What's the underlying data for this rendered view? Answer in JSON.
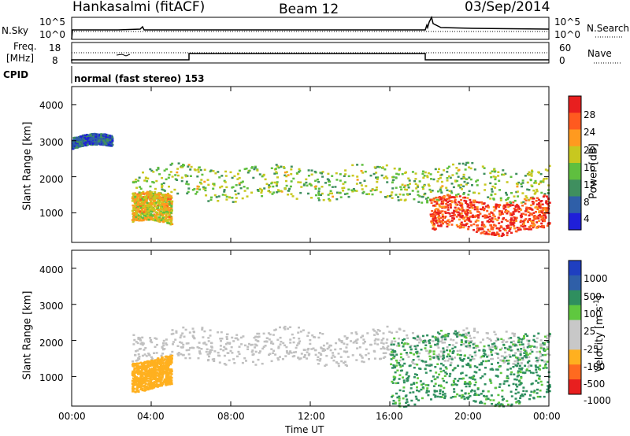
{
  "header": {
    "station": "Hankasalmi (fitACF)",
    "beam": "Beam 12",
    "date": "03/Sep/2014"
  },
  "strips": {
    "nsky_label": "N.Sky",
    "nsky_ticks": [
      "10^5",
      "10^0"
    ],
    "nsearch_label": "N.Search",
    "freq_label_1": "Freq.",
    "freq_label_2": "[MHz]",
    "freq_ticks": [
      "18",
      "8"
    ],
    "nave_label": "Nave",
    "nave_ticks": [
      "60",
      "0"
    ],
    "cpid_label": "CPID",
    "cpid_value": "normal (fast stereo) 153"
  },
  "axes": {
    "ylabel": "Slant Range [km]",
    "yticks": [
      "4000",
      "3000",
      "2000",
      "1000"
    ],
    "xlabel": "Time UT",
    "xticks": [
      "00:00",
      "04:00",
      "08:00",
      "12:00",
      "16:00",
      "20:00",
      "00:00"
    ]
  },
  "colors": {
    "power": [
      "#1f1fd9",
      "#2f5fa8",
      "#3f8f5f",
      "#5fbf3f",
      "#c8c81f",
      "#ff9a1f",
      "#ff5a1f",
      "#e81f1f"
    ],
    "velocity": [
      "#e81f1f",
      "#ff6a1f",
      "#ffb01f",
      "#c8c8c8",
      "#c8c8c8",
      "#5fc83f",
      "#2f8f5f",
      "#2f5fa8",
      "#1f3fc0"
    ],
    "ground_scatter": "#c0c0c0"
  },
  "chart_data": [
    {
      "type": "heatmap",
      "title": "",
      "xlabel": "",
      "ylabel": "Slant Range [km]",
      "xlim_hours": [
        0,
        24
      ],
      "ylim_km": [
        180,
        4500
      ],
      "colorbar_label": "Power [dB]",
      "colorbar_ticks": [
        "28",
        "24",
        "20",
        "16",
        "12",
        "8",
        "4"
      ],
      "colorbar_range": [
        0,
        30
      ],
      "features": [
        {
          "label": "far range scatter",
          "t_start": 0,
          "t_end": 2,
          "range_km": [
            2800,
            3100
          ],
          "power_db": 6
        },
        {
          "label": "main echo band",
          "t_start": 3,
          "t_end": 24,
          "range_km": [
            1400,
            2300
          ],
          "power_db": 14
        },
        {
          "label": "near range strong",
          "t_start": 18,
          "t_end": 24,
          "range_km": [
            500,
            1400
          ],
          "power_db": 26
        },
        {
          "label": "early near echoes",
          "t_start": 3,
          "t_end": 5,
          "range_km": [
            700,
            1500
          ],
          "power_db": 18
        }
      ]
    },
    {
      "type": "heatmap",
      "title": "",
      "xlabel": "Time UT",
      "ylabel": "Slant Range [km]",
      "xlim_hours": [
        0,
        24
      ],
      "ylim_km": [
        180,
        4500
      ],
      "colorbar_label": "Velocity [m s",
      "colorbar_label_exp": "-1",
      "colorbar_ticks": [
        "1000",
        "500",
        "100",
        "25",
        "-25",
        "-100",
        "-500",
        "-1000"
      ],
      "colorbar_range": [
        -1000,
        1000
      ],
      "features": [
        {
          "label": "ground scatter band",
          "t_start": 3,
          "t_end": 24,
          "range_km": [
            1400,
            2300
          ],
          "velocity": 0
        },
        {
          "label": "early negative velocity",
          "t_start": 3,
          "t_end": 5,
          "range_km": [
            700,
            1500
          ],
          "velocity": -300
        },
        {
          "label": "late positive velocity",
          "t_start": 16,
          "t_end": 24,
          "range_km": [
            300,
            2200
          ],
          "velocity": 120
        }
      ]
    }
  ]
}
